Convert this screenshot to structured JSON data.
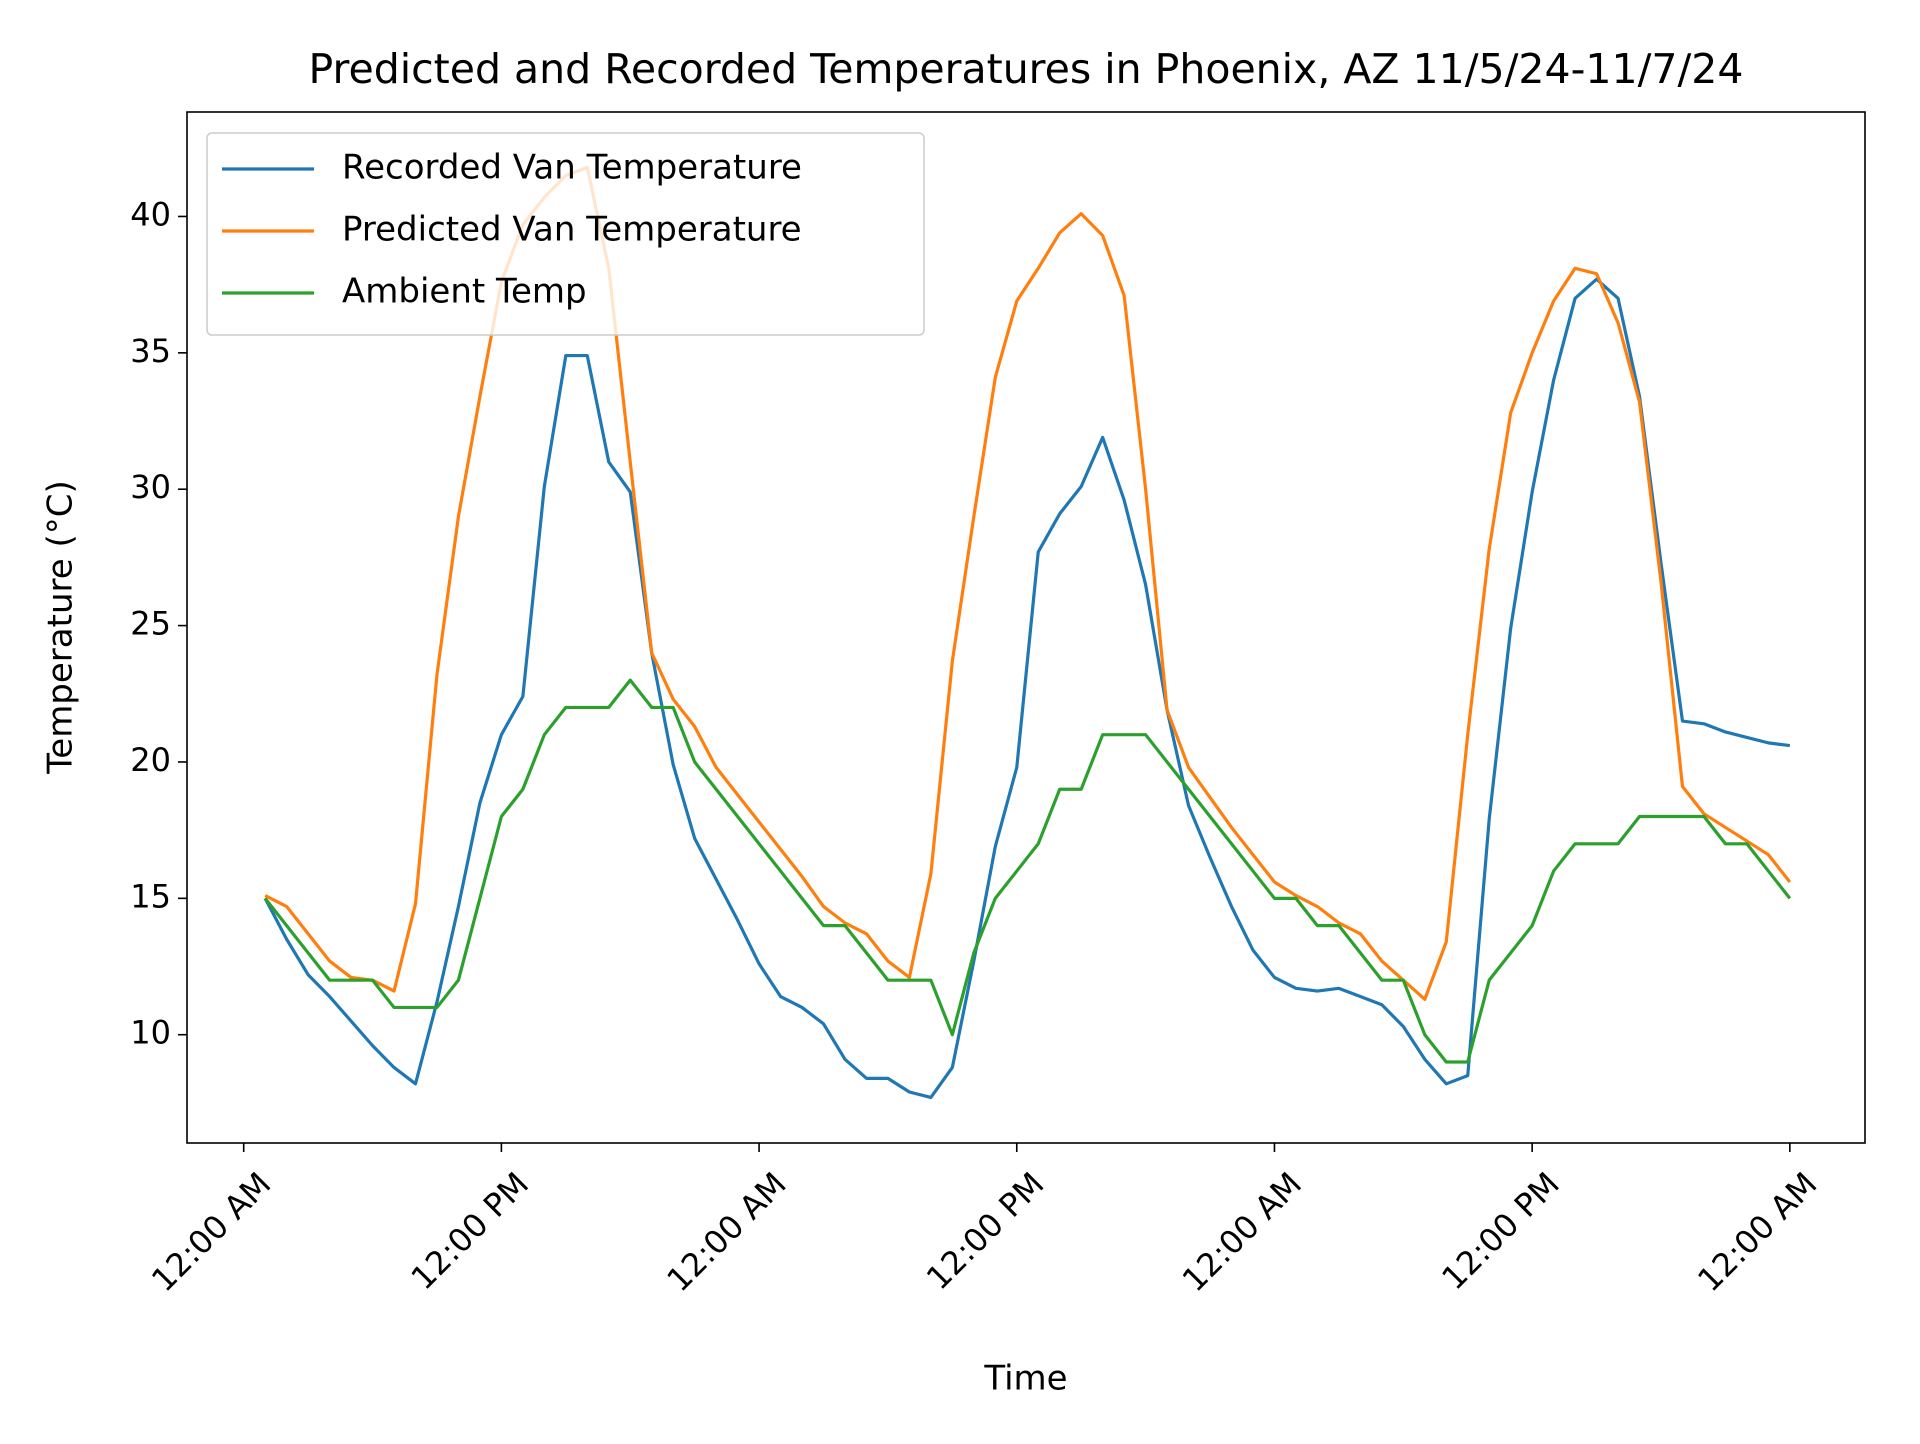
{
  "chart_data": {
    "type": "line",
    "title": "Predicted and Recorded Temperatures in Phoenix, AZ 11/5/24-11/7/24",
    "xlabel": "Time",
    "ylabel": "Temperature (°C)",
    "x": [
      1,
      2,
      3,
      4,
      5,
      6,
      7,
      8,
      9,
      10,
      11,
      12,
      13,
      14,
      15,
      16,
      17,
      18,
      19,
      20,
      21,
      22,
      23,
      24,
      25,
      26,
      27,
      28,
      29,
      30,
      31,
      32,
      33,
      34,
      35,
      36,
      37,
      38,
      39,
      40,
      41,
      42,
      43,
      44,
      45,
      46,
      47,
      48,
      49,
      50,
      51,
      52,
      53,
      54,
      55,
      56,
      57,
      58,
      59,
      60,
      61,
      62,
      63,
      64,
      65,
      66,
      67,
      68,
      69,
      70,
      71,
      72
    ],
    "series": [
      {
        "name": "Recorded Van Temperature",
        "color": "#1f77b4",
        "values": [
          15.0,
          13.5,
          12.2,
          11.4,
          10.5,
          9.6,
          8.8,
          8.2,
          11.2,
          14.7,
          18.5,
          21.0,
          22.4,
          30.1,
          34.9,
          34.9,
          31.0,
          29.9,
          24.0,
          19.9,
          17.2,
          15.7,
          14.2,
          12.6,
          11.4,
          11.0,
          10.4,
          9.1,
          8.4,
          8.4,
          7.9,
          7.7,
          8.8,
          12.7,
          16.9,
          19.8,
          27.7,
          29.1,
          30.1,
          31.9,
          29.6,
          26.5,
          21.9,
          18.4,
          16.5,
          14.7,
          13.1,
          12.1,
          11.7,
          11.6,
          11.7,
          11.4,
          11.1,
          10.3,
          9.1,
          8.2,
          8.5,
          17.9,
          24.9,
          29.9,
          34.0,
          37.0,
          37.7,
          37.0,
          33.4,
          27.3,
          21.5,
          21.4,
          21.1,
          20.9,
          20.7,
          20.6
        ]
      },
      {
        "name": "Predicted Van Temperature",
        "color": "#ff7f0e",
        "values": [
          15.1,
          14.7,
          13.7,
          12.7,
          12.1,
          12.0,
          11.6,
          14.8,
          23.2,
          29.0,
          33.4,
          37.6,
          39.7,
          40.7,
          41.5,
          41.8,
          38.1,
          31.0,
          24.0,
          22.3,
          21.3,
          19.8,
          18.8,
          17.8,
          16.8,
          15.8,
          14.7,
          14.1,
          13.7,
          12.7,
          12.1,
          15.9,
          23.7,
          29.0,
          34.1,
          36.9,
          38.1,
          39.4,
          40.1,
          39.3,
          37.1,
          30.0,
          21.9,
          19.8,
          18.7,
          17.6,
          16.6,
          15.6,
          15.1,
          14.7,
          14.1,
          13.7,
          12.7,
          12.0,
          11.3,
          13.4,
          21.0,
          27.8,
          32.8,
          35.0,
          36.9,
          38.1,
          37.9,
          36.1,
          33.2,
          26.6,
          19.1,
          18.1,
          17.6,
          17.1,
          16.6,
          15.6
        ]
      },
      {
        "name": "Ambient Temp",
        "color": "#2ca02c",
        "values": [
          15,
          14,
          13,
          12,
          12,
          12,
          11,
          11,
          11,
          12,
          15,
          18,
          19,
          21,
          22,
          22,
          22,
          23,
          22,
          22,
          20,
          19,
          18,
          17,
          16,
          15,
          14,
          14,
          13,
          12,
          12,
          12,
          10,
          13,
          15,
          16,
          17,
          19,
          19,
          21,
          21,
          21,
          20,
          19,
          18,
          17,
          16,
          15,
          15,
          14,
          14,
          13,
          12,
          12,
          10,
          9,
          9,
          12,
          13,
          14,
          16,
          17,
          17,
          17,
          18,
          18,
          18,
          18,
          17,
          17,
          16,
          15
        ]
      }
    ],
    "xlim": [
      -2.64,
      75.5
    ],
    "ylim": [
      6.03,
      43.83
    ],
    "xticks": [
      {
        "value": 0,
        "label": "12:00 AM"
      },
      {
        "value": 12,
        "label": "12:00 PM"
      },
      {
        "value": 24,
        "label": "12:00 AM"
      },
      {
        "value": 36,
        "label": "12:00 PM"
      },
      {
        "value": 48,
        "label": "12:00 AM"
      },
      {
        "value": 60,
        "label": "12:00 PM"
      },
      {
        "value": 72,
        "label": "12:00 AM"
      }
    ],
    "yticks": [
      10,
      15,
      20,
      25,
      30,
      35,
      40
    ],
    "grid": false,
    "legend": "upper left"
  }
}
